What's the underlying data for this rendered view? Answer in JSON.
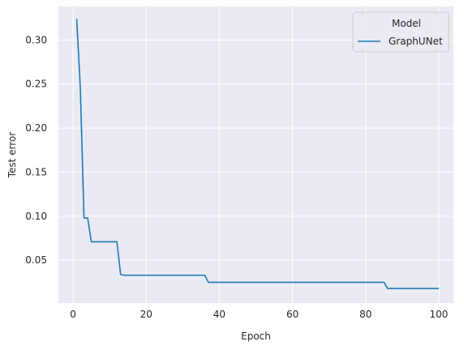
{
  "chart_data": {
    "type": "line",
    "xlabel": "Epoch",
    "ylabel": "Test error",
    "xlim": [
      -4,
      104
    ],
    "ylim": [
      0.0015,
      0.338
    ],
    "xticks": [
      0,
      20,
      40,
      60,
      80,
      100
    ],
    "yticks": [
      0.05,
      0.1,
      0.15,
      0.2,
      0.25,
      0.3
    ],
    "ytick_labels": [
      "0.05",
      "0.10",
      "0.15",
      "0.20",
      "0.25",
      "0.30"
    ],
    "grid": true,
    "legend": {
      "title": "Model",
      "placement": "top-right"
    },
    "series": [
      {
        "name": "GraphUNet",
        "color": "#1f77b4",
        "x": [
          1,
          2,
          3,
          4,
          5,
          6,
          7,
          8,
          9,
          10,
          11,
          12,
          13,
          14,
          15,
          16,
          17,
          18,
          19,
          20,
          21,
          22,
          23,
          24,
          25,
          26,
          27,
          28,
          29,
          30,
          31,
          32,
          33,
          34,
          35,
          36,
          37,
          38,
          39,
          40,
          41,
          42,
          43,
          44,
          45,
          46,
          47,
          48,
          49,
          50,
          51,
          52,
          53,
          54,
          55,
          56,
          57,
          58,
          59,
          60,
          61,
          62,
          63,
          64,
          65,
          66,
          67,
          68,
          69,
          70,
          71,
          72,
          73,
          74,
          75,
          76,
          77,
          78,
          79,
          80,
          81,
          82,
          83,
          84,
          85,
          86,
          87,
          88,
          89,
          90,
          91,
          92,
          93,
          94,
          95,
          96,
          97,
          98,
          99,
          100
        ],
        "y": [
          0.324,
          0.245,
          0.098,
          0.098,
          0.071,
          0.071,
          0.071,
          0.071,
          0.071,
          0.071,
          0.071,
          0.071,
          0.034,
          0.033,
          0.033,
          0.033,
          0.033,
          0.033,
          0.033,
          0.033,
          0.033,
          0.033,
          0.033,
          0.033,
          0.033,
          0.033,
          0.033,
          0.033,
          0.033,
          0.033,
          0.033,
          0.033,
          0.033,
          0.033,
          0.033,
          0.033,
          0.025,
          0.025,
          0.025,
          0.025,
          0.025,
          0.025,
          0.025,
          0.025,
          0.025,
          0.025,
          0.025,
          0.025,
          0.025,
          0.025,
          0.025,
          0.025,
          0.025,
          0.025,
          0.025,
          0.025,
          0.025,
          0.025,
          0.025,
          0.025,
          0.025,
          0.025,
          0.025,
          0.025,
          0.025,
          0.025,
          0.025,
          0.025,
          0.025,
          0.025,
          0.025,
          0.025,
          0.025,
          0.025,
          0.025,
          0.025,
          0.025,
          0.025,
          0.025,
          0.025,
          0.025,
          0.025,
          0.025,
          0.025,
          0.025,
          0.018,
          0.018,
          0.018,
          0.018,
          0.018,
          0.018,
          0.018,
          0.018,
          0.018,
          0.018,
          0.018,
          0.018,
          0.018,
          0.018,
          0.018
        ]
      }
    ]
  },
  "colors": {
    "plot_background": "#eaeaf2",
    "grid": "#ffffff",
    "series_line": "#1f77b4"
  }
}
